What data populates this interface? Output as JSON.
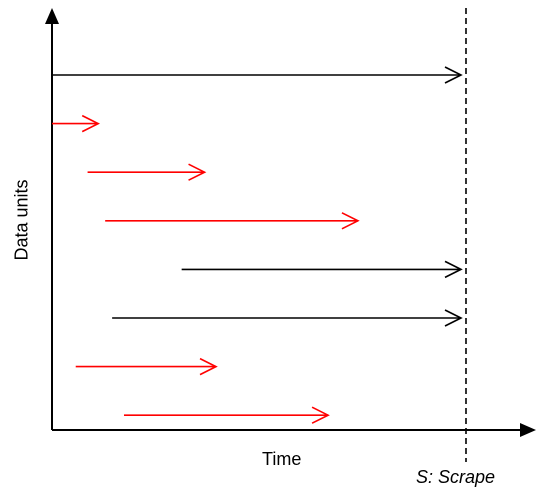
{
  "labels": {
    "x_axis": "Time",
    "y_axis": "Data units",
    "scrape": "S: Scrape"
  },
  "colors": {
    "axis": "#000000",
    "lost": "#ff0000",
    "active": "#000000"
  },
  "icons": {
    "x_axis_head": "arrowhead-right-icon",
    "y_axis_head": "arrowhead-up-icon"
  },
  "lifetimes": [
    {
      "status": "active",
      "start": 0.0,
      "end": 1.0
    },
    {
      "status": "lost",
      "start": 0.0,
      "end": 0.113
    },
    {
      "status": "lost",
      "start": 0.087,
      "end": 0.373
    },
    {
      "status": "lost",
      "start": 0.13,
      "end": 0.748
    },
    {
      "status": "active",
      "start": 0.317,
      "end": 1.0
    },
    {
      "status": "active",
      "start": 0.147,
      "end": 1.0
    },
    {
      "status": "lost",
      "start": 0.058,
      "end": 0.401
    },
    {
      "status": "lost",
      "start": 0.176,
      "end": 0.675
    }
  ]
}
